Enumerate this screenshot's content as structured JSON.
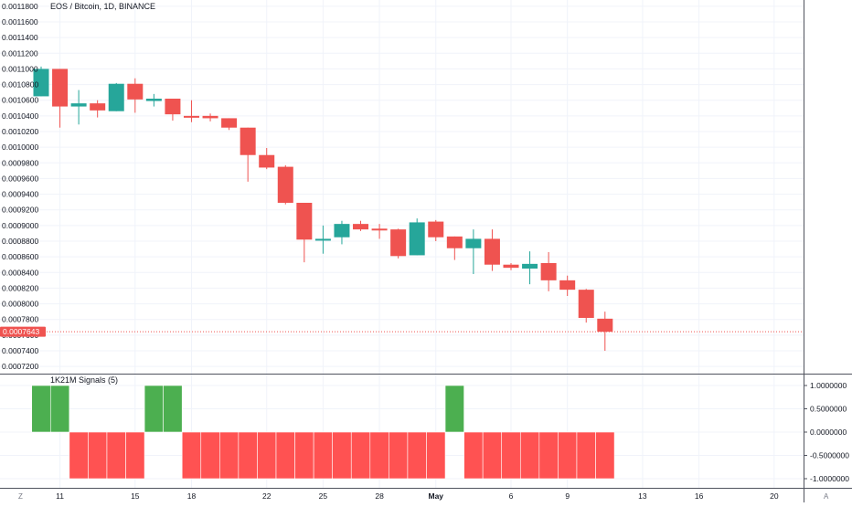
{
  "colors": {
    "up": "#26a69a",
    "down": "#ef5350",
    "signal_up": "#4caf50",
    "signal_down": "#ff5252",
    "grid": "#f0f3fa",
    "axis_text": "#131722",
    "separator": "#50535e",
    "last_price_bg": "#ef5350"
  },
  "header": {
    "title": "EOS / Bitcoin, 1D, BINANCE"
  },
  "indicator": {
    "title": "1K21M Signals (5)"
  },
  "bottom_corner": {
    "left": "Z",
    "right": "A"
  },
  "chart_data": [
    {
      "type": "candlestick",
      "title": "EOS / Bitcoin, 1D, BINANCE",
      "ylim": [
        0.000712,
        0.001188
      ],
      "y_ticks": [
        "0.0007200",
        "0.0007400",
        "0.0007600",
        "0.0007800",
        "0.0008000",
        "0.0008200",
        "0.0008400",
        "0.0008600",
        "0.0008800",
        "0.0009000",
        "0.0009200",
        "0.0009400",
        "0.0009600",
        "0.0009800",
        "0.0010000",
        "0.0010200",
        "0.0010400",
        "0.0010600",
        "0.0010800",
        "0.0011000",
        "0.0011200",
        "0.0011400",
        "0.0011600",
        "0.0011800"
      ],
      "x_ticks": [
        "11",
        "15",
        "18",
        "22",
        "25",
        "28",
        "May",
        "6",
        "9",
        "13",
        "16",
        "20"
      ],
      "last_price": "0.0007643",
      "candles": [
        {
          "o": 0.001065,
          "h": 0.001103,
          "l": 0.001065,
          "c": 0.0011
        },
        {
          "o": 0.0011,
          "h": 0.0011,
          "l": 0.001025,
          "c": 0.001052
        },
        {
          "o": 0.001052,
          "h": 0.001073,
          "l": 0.001029,
          "c": 0.001056
        },
        {
          "o": 0.001056,
          "h": 0.00106,
          "l": 0.001038,
          "c": 0.001047
        },
        {
          "o": 0.001046,
          "h": 0.001082,
          "l": 0.001046,
          "c": 0.001081
        },
        {
          "o": 0.001081,
          "h": 0.001088,
          "l": 0.001044,
          "c": 0.001061
        },
        {
          "o": 0.001059,
          "h": 0.001068,
          "l": 0.001052,
          "c": 0.001062
        },
        {
          "o": 0.001062,
          "h": 0.001062,
          "l": 0.001034,
          "c": 0.001042
        },
        {
          "o": 0.00104,
          "h": 0.00106,
          "l": 0.001032,
          "c": 0.001039
        },
        {
          "o": 0.00104,
          "h": 0.001043,
          "l": 0.001033,
          "c": 0.001037
        },
        {
          "o": 0.001037,
          "h": 0.001037,
          "l": 0.001022,
          "c": 0.001025
        },
        {
          "o": 0.001025,
          "h": 0.001025,
          "l": 0.000956,
          "c": 0.00099
        },
        {
          "o": 0.00099,
          "h": 0.000999,
          "l": 0.000972,
          "c": 0.000974
        },
        {
          "o": 0.000975,
          "h": 0.000977,
          "l": 0.000927,
          "c": 0.000929
        },
        {
          "o": 0.000929,
          "h": 0.000929,
          "l": 0.000853,
          "c": 0.000882
        },
        {
          "o": 0.000883,
          "h": 0.0009,
          "l": 0.000864,
          "c": 0.000883
        },
        {
          "o": 0.000885,
          "h": 0.000906,
          "l": 0.000876,
          "c": 0.000902
        },
        {
          "o": 0.000902,
          "h": 0.000906,
          "l": 0.000893,
          "c": 0.000895
        },
        {
          "o": 0.000896,
          "h": 0.000902,
          "l": 0.000883,
          "c": 0.000895
        },
        {
          "o": 0.000895,
          "h": 0.000896,
          "l": 0.000858,
          "c": 0.000861
        },
        {
          "o": 0.000862,
          "h": 0.000909,
          "l": 0.000862,
          "c": 0.000904
        },
        {
          "o": 0.000905,
          "h": 0.000907,
          "l": 0.00088,
          "c": 0.000885
        },
        {
          "o": 0.000886,
          "h": 0.000886,
          "l": 0.000856,
          "c": 0.000871
        },
        {
          "o": 0.000871,
          "h": 0.000895,
          "l": 0.000838,
          "c": 0.000883
        },
        {
          "o": 0.000883,
          "h": 0.000895,
          "l": 0.000842,
          "c": 0.00085
        },
        {
          "o": 0.00085,
          "h": 0.000852,
          "l": 0.000843,
          "c": 0.000846
        },
        {
          "o": 0.000845,
          "h": 0.000867,
          "l": 0.000825,
          "c": 0.000851
        },
        {
          "o": 0.000852,
          "h": 0.000866,
          "l": 0.000816,
          "c": 0.00083
        },
        {
          "o": 0.00083,
          "h": 0.000836,
          "l": 0.00081,
          "c": 0.000818
        },
        {
          "o": 0.000818,
          "h": 0.000819,
          "l": 0.000776,
          "c": 0.000782
        },
        {
          "o": 0.000781,
          "h": 0.00079,
          "l": 0.00074,
          "c": 0.0007643
        }
      ]
    },
    {
      "type": "bar",
      "title": "1K21M Signals (5)",
      "ylim": [
        -1.1,
        1.1
      ],
      "y_ticks": [
        "1.0000000",
        "0.5000000",
        "0.0000000",
        "-0.5000000",
        "-1.0000000"
      ],
      "values": [
        1,
        1,
        -1,
        -1,
        -1,
        -1,
        1,
        1,
        -1,
        -1,
        -1,
        -1,
        -1,
        -1,
        -1,
        -1,
        -1,
        -1,
        -1,
        -1,
        -1,
        -1,
        1,
        -1,
        -1,
        -1,
        -1,
        -1,
        -1,
        -1,
        -1
      ]
    }
  ]
}
